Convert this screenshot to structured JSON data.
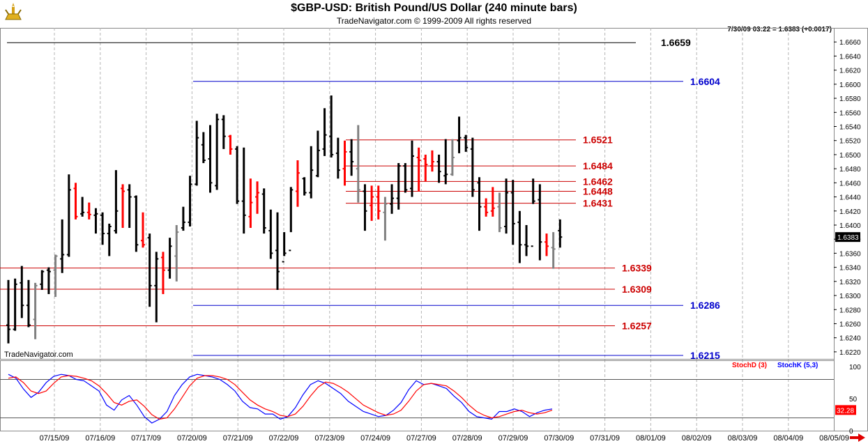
{
  "header": {
    "title": "$GBP-USD:  British Pound/US Dollar  (240 minute bars)",
    "subtitle": "TradeNavigator.com © 1999-2009 All rights reserved",
    "readout": "7/30/09 03:22 = 1.6383 (+0.0017)",
    "watermark": "TradeNavigator.com"
  },
  "colors": {
    "up_bar": "#000000",
    "down_bar": "#ff0000",
    "neutral_bar": "#808080",
    "level_red": "#cc0000",
    "level_blue": "#0000cc",
    "level_black": "#000000",
    "stoch_d": "#ff0000",
    "stoch_k": "#0000ff",
    "grid": "#b4b4b4"
  },
  "chart_data": [
    {
      "type": "ohlc",
      "ylim": [
        1.621,
        1.668
      ],
      "yticks": [
        "1.6220",
        "1.6240",
        "1.6260",
        "1.6280",
        "1.6300",
        "1.6320",
        "1.6340",
        "1.6360",
        "1.6380",
        "1.6400",
        "1.6420",
        "1.6440",
        "1.6460",
        "1.6480",
        "1.6500",
        "1.6520",
        "1.6540",
        "1.6560",
        "1.6580",
        "1.6600",
        "1.6620",
        "1.6640",
        "1.6660"
      ],
      "last_price_label": "1.6383",
      "last_price": 1.6383,
      "x_dates": [
        "07/15/09",
        "07/16/09",
        "07/17/09",
        "07/20/09",
        "07/21/09",
        "07/22/09",
        "07/23/09",
        "07/24/09",
        "07/27/09",
        "07/28/09",
        "07/29/09",
        "07/30/09",
        "07/31/09",
        "08/01/09",
        "08/02/09",
        "08/03/09",
        "08/04/09",
        "08/05/09"
      ],
      "bars": [
        [
          1.6258,
          1.6322,
          1.6232,
          1.6252,
          "up"
        ],
        [
          1.6252,
          1.6324,
          1.625,
          1.6316,
          "up"
        ],
        [
          1.6318,
          1.6342,
          1.6268,
          1.6286,
          "up"
        ],
        [
          1.6286,
          1.6322,
          1.6255,
          1.6258,
          "up"
        ],
        [
          1.6266,
          1.6318,
          1.6238,
          1.6314,
          "neutral"
        ],
        [
          1.6316,
          1.6336,
          1.6308,
          1.6334,
          "up"
        ],
        [
          1.6336,
          1.634,
          1.6302,
          1.6334,
          "up"
        ],
        [
          1.6336,
          1.6358,
          1.6298,
          1.6356,
          "neutral"
        ],
        [
          1.6352,
          1.6408,
          1.6332,
          1.6358,
          "up"
        ],
        [
          1.6358,
          1.6472,
          1.6355,
          1.645,
          "up"
        ],
        [
          1.6452,
          1.646,
          1.6408,
          1.6412,
          "down"
        ],
        [
          1.6416,
          1.644,
          1.6412,
          1.6418,
          "up"
        ],
        [
          1.6418,
          1.6432,
          1.6408,
          1.6415,
          "down"
        ],
        [
          1.6414,
          1.6424,
          1.6388,
          1.6416,
          "up"
        ],
        [
          1.6414,
          1.6418,
          1.6372,
          1.6388,
          "up"
        ],
        [
          1.6388,
          1.6402,
          1.6356,
          1.6398,
          "up"
        ],
        [
          1.6392,
          1.6478,
          1.6388,
          1.642,
          "up"
        ],
        [
          1.6452,
          1.6458,
          1.6396,
          1.6448,
          "down"
        ],
        [
          1.645,
          1.6458,
          1.6396,
          1.644,
          "up"
        ],
        [
          1.644,
          1.6442,
          1.6362,
          1.6372,
          "up"
        ],
        [
          1.6378,
          1.6418,
          1.6368,
          1.6372,
          "down"
        ],
        [
          1.6382,
          1.6388,
          1.6284,
          1.6314,
          "up"
        ],
        [
          1.6314,
          1.6362,
          1.6262,
          1.6352,
          "up"
        ],
        [
          1.6354,
          1.6362,
          1.6302,
          1.6336,
          "down"
        ],
        [
          1.6336,
          1.6382,
          1.6324,
          1.637,
          "up"
        ],
        [
          1.6356,
          1.64,
          1.632,
          1.639,
          "neutral"
        ],
        [
          1.6396,
          1.6426,
          1.6392,
          1.6404,
          "up"
        ],
        [
          1.6404,
          1.647,
          1.6398,
          1.6458,
          "up"
        ],
        [
          1.6458,
          1.6548,
          1.6456,
          1.6524,
          "up"
        ],
        [
          1.6514,
          1.6532,
          1.6488,
          1.6492,
          "up"
        ],
        [
          1.6494,
          1.6542,
          1.6446,
          1.646,
          "up"
        ],
        [
          1.6456,
          1.6558,
          1.645,
          1.655,
          "up"
        ],
        [
          1.655,
          1.6556,
          1.6508,
          1.6526,
          "up"
        ],
        [
          1.6526,
          1.6528,
          1.65,
          1.6508,
          "down"
        ],
        [
          1.6508,
          1.6512,
          1.643,
          1.6434,
          "up"
        ],
        [
          1.6434,
          1.651,
          1.6388,
          1.6414,
          "up"
        ],
        [
          1.6412,
          1.6466,
          1.6396,
          1.6432,
          "down"
        ],
        [
          1.644,
          1.6462,
          1.6416,
          1.6446,
          "down"
        ],
        [
          1.6444,
          1.6452,
          1.6388,
          1.6396,
          "up"
        ],
        [
          1.6392,
          1.6422,
          1.6352,
          1.636,
          "up"
        ],
        [
          1.6364,
          1.6418,
          1.6308,
          1.6334,
          "up"
        ],
        [
          1.6348,
          1.639,
          1.6356,
          1.636,
          "up"
        ],
        [
          1.6364,
          1.6454,
          1.639,
          1.645,
          "up"
        ],
        [
          1.6448,
          1.6492,
          1.6426,
          1.6474,
          "down"
        ],
        [
          1.6466,
          1.6468,
          1.6442,
          1.6446,
          "up"
        ],
        [
          1.6446,
          1.6512,
          1.6438,
          1.6478,
          "up"
        ],
        [
          1.647,
          1.6534,
          1.6468,
          1.6506,
          "up"
        ],
        [
          1.6508,
          1.6566,
          1.6498,
          1.6528,
          "up"
        ],
        [
          1.6526,
          1.6584,
          1.6496,
          1.65,
          "up"
        ],
        [
          1.6502,
          1.6524,
          1.6466,
          1.6478,
          "up"
        ],
        [
          1.648,
          1.652,
          1.6456,
          1.6504,
          "down"
        ],
        [
          1.6504,
          1.6522,
          1.647,
          1.649,
          "up"
        ],
        [
          1.648,
          1.6542,
          1.6432,
          1.645,
          "neutral"
        ],
        [
          1.6448,
          1.6458,
          1.6392,
          1.642,
          "up"
        ],
        [
          1.6428,
          1.6456,
          1.6406,
          1.644,
          "down"
        ],
        [
          1.644,
          1.6456,
          1.6408,
          1.642,
          "down"
        ],
        [
          1.6418,
          1.644,
          1.6378,
          1.643,
          "neutral"
        ],
        [
          1.643,
          1.6458,
          1.6416,
          1.6438,
          "up"
        ],
        [
          1.6438,
          1.6488,
          1.6422,
          1.6484,
          "up"
        ],
        [
          1.6484,
          1.6488,
          1.6446,
          1.645,
          "up"
        ],
        [
          1.6452,
          1.652,
          1.644,
          1.6498,
          "up"
        ],
        [
          1.6496,
          1.651,
          1.6448,
          1.6492,
          "down"
        ],
        [
          1.6494,
          1.65,
          1.6462,
          1.6486,
          "down"
        ],
        [
          1.6484,
          1.6506,
          1.6476,
          1.649,
          "down"
        ],
        [
          1.649,
          1.65,
          1.646,
          1.6476,
          "up"
        ],
        [
          1.647,
          1.6522,
          1.6458,
          1.6472,
          "up"
        ],
        [
          1.6472,
          1.6522,
          1.647,
          1.6496,
          "neutral"
        ],
        [
          1.652,
          1.6554,
          1.6502,
          1.6524,
          "up"
        ],
        [
          1.6524,
          1.6528,
          1.6504,
          1.651,
          "up"
        ],
        [
          1.6508,
          1.6524,
          1.644,
          1.645,
          "up"
        ],
        [
          1.646,
          1.6468,
          1.6392,
          1.6426,
          "up"
        ],
        [
          1.6426,
          1.6438,
          1.6412,
          1.6418,
          "down"
        ],
        [
          1.642,
          1.6454,
          1.6412,
          1.6424,
          "down"
        ],
        [
          1.6426,
          1.6446,
          1.639,
          1.6396,
          "neutral"
        ],
        [
          1.6398,
          1.6466,
          1.6388,
          1.6446,
          "up"
        ],
        [
          1.6446,
          1.6464,
          1.6372,
          1.6402,
          "up"
        ],
        [
          1.6404,
          1.642,
          1.6346,
          1.6372,
          "up"
        ],
        [
          1.6372,
          1.64,
          1.6356,
          1.637,
          "up"
        ],
        [
          1.637,
          1.6466,
          1.643,
          1.6434,
          "up"
        ],
        [
          1.6436,
          1.6458,
          1.635,
          1.6376,
          "up"
        ],
        [
          1.6376,
          1.6388,
          1.6356,
          1.637,
          "down"
        ],
        [
          1.6368,
          1.639,
          1.6338,
          1.6366,
          "neutral"
        ],
        [
          1.6392,
          1.6408,
          1.6368,
          1.6383,
          "up"
        ]
      ],
      "levels": [
        {
          "value": 1.6659,
          "label": "1.6659",
          "color": "black"
        },
        {
          "value": 1.6604,
          "label": "1.6604",
          "color": "blue"
        },
        {
          "value": 1.6521,
          "label": "1.6521",
          "color": "red"
        },
        {
          "value": 1.6484,
          "label": "1.6484",
          "color": "red"
        },
        {
          "value": 1.6462,
          "label": "1.6462",
          "color": "red"
        },
        {
          "value": 1.6448,
          "label": "1.6448",
          "color": "red"
        },
        {
          "value": 1.6431,
          "label": "1.6431",
          "color": "red"
        },
        {
          "value": 1.6339,
          "label": "1.6339",
          "color": "red"
        },
        {
          "value": 1.6309,
          "label": "1.6309",
          "color": "red"
        },
        {
          "value": 1.6286,
          "label": "1.6286",
          "color": "blue"
        },
        {
          "value": 1.6257,
          "label": "1.6257",
          "color": "red"
        },
        {
          "value": 1.6215,
          "label": "1.6215",
          "color": "blue"
        }
      ]
    },
    {
      "type": "line",
      "ylim": [
        0,
        110
      ],
      "yticks": [
        "100",
        "50",
        "0"
      ],
      "reference_lines": [
        80,
        20
      ],
      "legend": [
        {
          "label": "StochD (3)",
          "color": "red"
        },
        {
          "label": "StochK (5,3)",
          "color": "blue"
        }
      ],
      "last_value_label": "32.28",
      "last_value": 32.28,
      "series": [
        {
          "name": "StochK (5,3)",
          "values": [
            88,
            82,
            65,
            52,
            60,
            75,
            85,
            88,
            86,
            80,
            78,
            70,
            62,
            40,
            32,
            48,
            55,
            40,
            22,
            12,
            18,
            30,
            55,
            72,
            84,
            88,
            86,
            84,
            80,
            72,
            62,
            46,
            36,
            34,
            26,
            26,
            18,
            22,
            36,
            56,
            72,
            78,
            74,
            66,
            58,
            46,
            38,
            30,
            26,
            22,
            24,
            32,
            44,
            64,
            78,
            72,
            74,
            70,
            66,
            54,
            44,
            30,
            22,
            20,
            18,
            30,
            30,
            34,
            30,
            22,
            28,
            32,
            34
          ]
        },
        {
          "name": "StochD (3)",
          "values": [
            82,
            84,
            75,
            62,
            58,
            62,
            74,
            84,
            86,
            85,
            82,
            78,
            70,
            58,
            44,
            40,
            46,
            48,
            38,
            25,
            18,
            20,
            34,
            52,
            70,
            82,
            86,
            86,
            84,
            80,
            72,
            60,
            48,
            40,
            34,
            30,
            24,
            22,
            26,
            38,
            54,
            68,
            76,
            74,
            68,
            60,
            50,
            40,
            34,
            28,
            24,
            26,
            32,
            46,
            62,
            72,
            74,
            72,
            70,
            62,
            52,
            40,
            30,
            24,
            20,
            22,
            26,
            30,
            32,
            28,
            26,
            28,
            32
          ]
        }
      ]
    }
  ]
}
